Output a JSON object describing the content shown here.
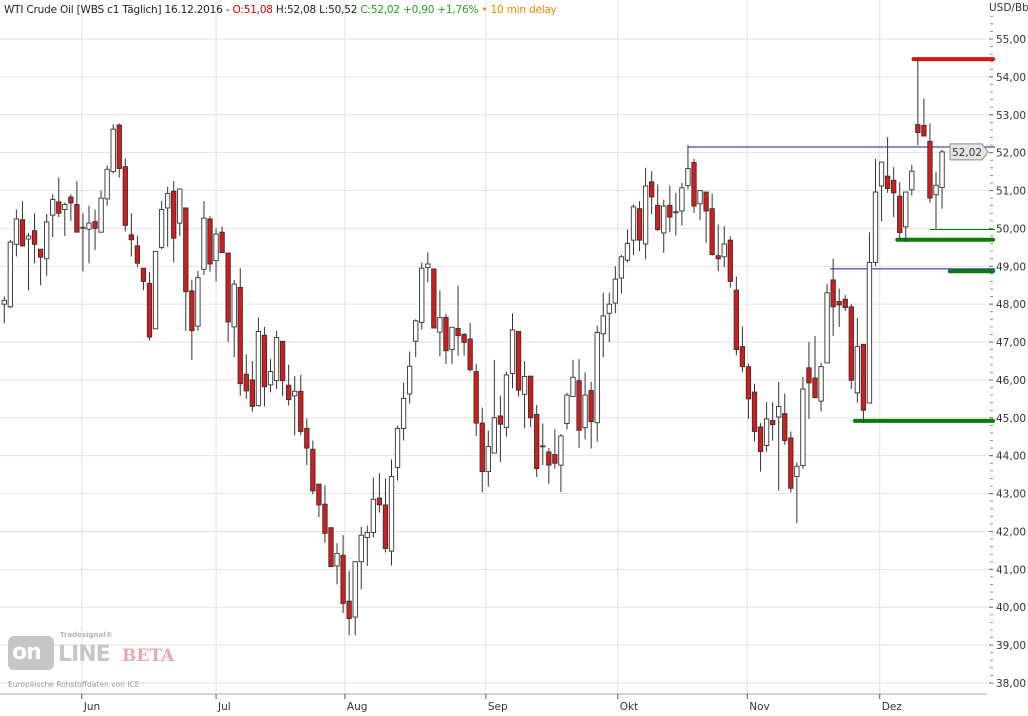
{
  "header": {
    "instrument": "WTI Crude Oil [WBS c1 Täglich] 16.12.2016 - ",
    "open": "O:51,08",
    "high_low": " H:52,08 L:50,52 ",
    "close_change": "C:52,02 +0,90 +1,76%",
    "delay": " • 10 min delay"
  },
  "logo": {
    "brand_small": "Tradesignal®",
    "brand_on": "on",
    "brand_line": "LINE",
    "beta": "BETA"
  },
  "source_note": "Europäische Rohstoffdaten von ICE",
  "colors": {
    "up_fill": "#ffffff",
    "down_fill": "#d41c1c",
    "outline": "#333333",
    "header_red": "#d40000",
    "header_green": "#2a9a2a",
    "header_orange": "#e08a00",
    "grid": "#e2e2e2",
    "blue_line": "#1a1a9a",
    "green_line": "#0a7a0a",
    "red_line": "#e01010"
  },
  "chart_data": {
    "type": "candlestick",
    "title": "WTI Crude Oil [WBS c1 Täglich]",
    "ylabel": "USD/Bbl",
    "ylim": [
      37.6,
      56.0
    ],
    "yticks": [
      "55,00",
      "54,00",
      "53,00",
      "52,00",
      "51,00",
      "50,00",
      "49,00",
      "48,00",
      "47,00",
      "46,00",
      "45,00",
      "44,00",
      "43,00",
      "42,00",
      "41,00",
      "40,00",
      "39,00",
      "38,00"
    ],
    "ytick_values": [
      55,
      54,
      53,
      52,
      51,
      50,
      49,
      48,
      47,
      46,
      45,
      44,
      43,
      42,
      41,
      40,
      39,
      38
    ],
    "grid": true,
    "months": [
      {
        "label": "Jun",
        "index": 12.8
      },
      {
        "label": "Jul",
        "index": 35.0
      },
      {
        "label": "Aug",
        "index": 56.3
      },
      {
        "label": "Sep",
        "index": 79.6
      },
      {
        "label": "Okt",
        "index": 101.4
      },
      {
        "label": "Nov",
        "index": 122.8
      },
      {
        "label": "Dez",
        "index": 144.7
      }
    ],
    "last_price_label": "52,02",
    "last_price": 52.02,
    "levels": [
      {
        "name": "resistance-red",
        "value": 54.47,
        "from_index": 150.3,
        "color": "#e01010",
        "thick": true
      },
      {
        "name": "blue-line-upper",
        "value": 52.15,
        "from_index": 113,
        "color": "#1a1a9a",
        "thick": false
      },
      {
        "name": "green-thin",
        "value": 49.97,
        "from_index": 153,
        "color": "#0a7a0a",
        "thick": false
      },
      {
        "name": "green-thick-upper",
        "value": 49.7,
        "from_index": 147.6,
        "color": "#0a7a0a",
        "thick": true
      },
      {
        "name": "blue-line-lower",
        "value": 48.93,
        "from_index": 136.5,
        "color": "#1a1a9a",
        "thick": false
      },
      {
        "name": "green-thick-middle",
        "value": 48.87,
        "from_index": 156.3,
        "color": "#0a7a0a",
        "thick": true
      },
      {
        "name": "green-thick-lower",
        "value": 44.92,
        "from_index": 140.6,
        "color": "#0a7a0a",
        "thick": true
      }
    ],
    "ohlc": [
      [
        48.0,
        48.2,
        47.5,
        48.1
      ],
      [
        47.93,
        49.7,
        47.9,
        49.64
      ],
      [
        49.58,
        50.5,
        49.26,
        50.25
      ],
      [
        50.23,
        50.72,
        49.52,
        49.54
      ],
      [
        49.72,
        49.88,
        48.37,
        49.8
      ],
      [
        49.94,
        50.4,
        49.08,
        49.58
      ],
      [
        49.45,
        49.45,
        48.5,
        49.24
      ],
      [
        49.2,
        50.38,
        48.75,
        50.17
      ],
      [
        50.35,
        50.9,
        49.77,
        50.76
      ],
      [
        50.7,
        51.34,
        50.3,
        50.4
      ],
      [
        50.5,
        50.68,
        49.8,
        50.63
      ],
      [
        50.83,
        50.9,
        50.2,
        50.67
      ],
      [
        50.63,
        51.25,
        49.9,
        49.9
      ],
      [
        50.03,
        50.4,
        48.86,
        50.03
      ],
      [
        49.98,
        50.6,
        49.08,
        50.14
      ],
      [
        50.18,
        50.5,
        49.43,
        50.0
      ],
      [
        49.9,
        51.0,
        49.9,
        50.8
      ],
      [
        50.78,
        51.66,
        50.6,
        51.56
      ],
      [
        51.5,
        52.75,
        51.45,
        52.62
      ],
      [
        52.73,
        52.77,
        51.34,
        51.58
      ],
      [
        51.63,
        51.84,
        49.92,
        50.08
      ],
      [
        49.83,
        50.4,
        49.26,
        49.7
      ],
      [
        49.54,
        49.8,
        48.97,
        49.08
      ],
      [
        48.95,
        48.95,
        48.37,
        48.6
      ],
      [
        48.55,
        48.84,
        47.04,
        47.13
      ],
      [
        47.35,
        49.39,
        47.35,
        49.39
      ],
      [
        49.5,
        50.72,
        49.45,
        50.5
      ],
      [
        50.54,
        51.1,
        49.52,
        50.92
      ],
      [
        50.98,
        51.25,
        49.1,
        49.74
      ],
      [
        50.14,
        51.04,
        49.8,
        51.04
      ],
      [
        50.54,
        50.54,
        47.3,
        48.33
      ],
      [
        48.35,
        48.65,
        46.53,
        47.3
      ],
      [
        47.42,
        48.88,
        47.3,
        48.7
      ],
      [
        48.92,
        50.72,
        48.77,
        50.27
      ],
      [
        50.25,
        50.32,
        48.86,
        49.06
      ],
      [
        49.15,
        50.0,
        48.6,
        49.85
      ],
      [
        49.9,
        50.05,
        49.36,
        49.36
      ],
      [
        49.35,
        49.35,
        47.0,
        47.53
      ],
      [
        47.4,
        48.64,
        46.6,
        48.53
      ],
      [
        48.44,
        48.95,
        45.58,
        45.9
      ],
      [
        46.15,
        46.68,
        45.5,
        45.71
      ],
      [
        46.0,
        46.5,
        45.16,
        45.3
      ],
      [
        45.32,
        47.65,
        45.3,
        47.28
      ],
      [
        47.18,
        47.4,
        45.3,
        45.82
      ],
      [
        45.87,
        46.55,
        45.67,
        46.22
      ],
      [
        45.98,
        47.3,
        45.76,
        47.12
      ],
      [
        47.02,
        47.02,
        45.58,
        45.98
      ],
      [
        45.86,
        46.4,
        45.32,
        45.48
      ],
      [
        45.58,
        46.1,
        44.54,
        45.7
      ],
      [
        45.7,
        46.13,
        44.54,
        44.64
      ],
      [
        44.72,
        44.98,
        43.75,
        44.2
      ],
      [
        44.17,
        44.4,
        42.98,
        43.07
      ],
      [
        43.25,
        43.25,
        42.38,
        42.7
      ],
      [
        42.72,
        43.22,
        41.7,
        41.95
      ],
      [
        42.1,
        42.1,
        41.07,
        41.07
      ],
      [
        41.09,
        41.69,
        40.6,
        41.42
      ],
      [
        41.37,
        41.9,
        39.85,
        40.1
      ],
      [
        40.16,
        40.96,
        39.26,
        39.7
      ],
      [
        39.74,
        41.2,
        39.26,
        41.2
      ],
      [
        41.2,
        42.12,
        40.47,
        41.9
      ],
      [
        41.84,
        42.15,
        41.09,
        41.97
      ],
      [
        41.97,
        43.42,
        41.84,
        42.85
      ],
      [
        42.88,
        43.54,
        42.5,
        42.7
      ],
      [
        42.7,
        43.4,
        41.44,
        41.55
      ],
      [
        41.48,
        43.9,
        41.1,
        43.45
      ],
      [
        43.69,
        44.79,
        43.34,
        44.72
      ],
      [
        44.72,
        45.93,
        44.4,
        45.51
      ],
      [
        45.63,
        46.75,
        45.38,
        46.36
      ],
      [
        47.02,
        47.6,
        46.6,
        47.56
      ],
      [
        47.52,
        49.1,
        47.33,
        48.95
      ],
      [
        48.97,
        49.37,
        48.58,
        49.06
      ],
      [
        48.93,
        48.93,
        47.37,
        47.37
      ],
      [
        47.26,
        48.36,
        46.62,
        47.65
      ],
      [
        47.65,
        47.74,
        46.42,
        46.77
      ],
      [
        46.8,
        47.39,
        46.42,
        47.39
      ],
      [
        47.36,
        48.49,
        46.64,
        47.17
      ],
      [
        47.2,
        47.24,
        46.64,
        46.99
      ],
      [
        47.08,
        47.5,
        46.22,
        46.27
      ],
      [
        46.22,
        46.42,
        44.52,
        44.86
      ],
      [
        44.86,
        45.27,
        43.03,
        43.58
      ],
      [
        43.58,
        44.66,
        43.18,
        44.24
      ],
      [
        44.07,
        46.53,
        44.06,
        45.0
      ],
      [
        45.05,
        45.58,
        43.83,
        44.83
      ],
      [
        44.74,
        46.22,
        44.5,
        46.13
      ],
      [
        46.17,
        47.76,
        45.78,
        47.32
      ],
      [
        47.28,
        47.28,
        45.56,
        45.73
      ],
      [
        45.62,
        46.5,
        44.72,
        46.09
      ],
      [
        46.1,
        46.1,
        44.76,
        45.0
      ],
      [
        45.09,
        45.34,
        43.44,
        43.66
      ],
      [
        44.26,
        44.85,
        43.75,
        44.26
      ],
      [
        44.1,
        44.2,
        43.26,
        43.75
      ],
      [
        44.03,
        44.7,
        43.66,
        43.8
      ],
      [
        43.75,
        44.57,
        43.04,
        44.52
      ],
      [
        44.85,
        45.66,
        44.69,
        45.6
      ],
      [
        45.56,
        46.53,
        45.56,
        46.07
      ],
      [
        45.98,
        46.55,
        44.21,
        44.67
      ],
      [
        44.74,
        46.2,
        44.43,
        45.6
      ],
      [
        45.72,
        45.95,
        44.19,
        44.9
      ],
      [
        44.87,
        47.43,
        44.37,
        47.25
      ],
      [
        47.22,
        48.3,
        46.6,
        47.69
      ],
      [
        47.76,
        48.3,
        47.0,
        48.0
      ],
      [
        48.03,
        49.0,
        47.76,
        48.66
      ],
      [
        48.69,
        49.3,
        48.28,
        49.25
      ],
      [
        49.16,
        49.97,
        49.1,
        49.6
      ],
      [
        49.69,
        50.63,
        49.3,
        50.57
      ],
      [
        50.52,
        50.72,
        49.4,
        49.69
      ],
      [
        49.59,
        51.6,
        49.18,
        51.12
      ],
      [
        51.23,
        51.51,
        50.37,
        50.83
      ],
      [
        50.61,
        51.16,
        49.93,
        49.97
      ],
      [
        49.88,
        50.76,
        49.35,
        50.59
      ],
      [
        50.61,
        51.13,
        49.9,
        50.3
      ],
      [
        50.44,
        50.94,
        49.81,
        50.44
      ],
      [
        50.46,
        51.2,
        50.08,
        51.07
      ],
      [
        51.13,
        52.2,
        51.03,
        51.58
      ],
      [
        51.74,
        51.84,
        50.41,
        50.59
      ],
      [
        50.65,
        51.0,
        50.22,
        51.0
      ],
      [
        50.96,
        50.96,
        49.62,
        50.46
      ],
      [
        50.52,
        50.92,
        49.28,
        49.31
      ],
      [
        49.28,
        50.1,
        48.87,
        49.2
      ],
      [
        49.25,
        50.06,
        48.98,
        49.59
      ],
      [
        49.69,
        49.79,
        48.44,
        48.6
      ],
      [
        48.37,
        48.73,
        46.65,
        46.8
      ],
      [
        46.88,
        47.4,
        46.2,
        46.35
      ],
      [
        46.35,
        46.43,
        44.97,
        45.5
      ],
      [
        45.68,
        45.9,
        44.38,
        44.64
      ],
      [
        44.76,
        44.86,
        43.58,
        44.11
      ],
      [
        44.27,
        45.41,
        44.11,
        44.97
      ],
      [
        44.93,
        45.41,
        44.4,
        44.82
      ],
      [
        45.02,
        45.95,
        43.08,
        45.3
      ],
      [
        45.11,
        45.64,
        44.29,
        44.4
      ],
      [
        44.47,
        44.64,
        43.03,
        43.14
      ],
      [
        43.45,
        43.82,
        42.22,
        43.72
      ],
      [
        43.74,
        46.08,
        43.65,
        45.76
      ],
      [
        46.32,
        47.0,
        44.97,
        45.92
      ],
      [
        46.05,
        47.16,
        45.53,
        45.53
      ],
      [
        45.44,
        46.45,
        45.17,
        46.35
      ],
      [
        46.45,
        48.53,
        46.45,
        48.3
      ],
      [
        48.64,
        49.2,
        47.16,
        47.93
      ],
      [
        48.07,
        48.41,
        47.4,
        47.98
      ],
      [
        48.13,
        48.24,
        47.82,
        47.91
      ],
      [
        47.93,
        48.0,
        45.76,
        45.99
      ],
      [
        45.66,
        47.64,
        45.4,
        46.88
      ],
      [
        46.94,
        46.94,
        44.86,
        45.2
      ],
      [
        45.39,
        49.9,
        45.39,
        49.1
      ],
      [
        49.1,
        51.84,
        49.0,
        50.96
      ],
      [
        51.12,
        51.75,
        50.19,
        51.75
      ],
      [
        51.38,
        52.41,
        50.94,
        51.05
      ],
      [
        51.27,
        51.62,
        50.3,
        50.94
      ],
      [
        50.85,
        51.22,
        49.71,
        49.89
      ],
      [
        50.04,
        50.96,
        49.64,
        50.96
      ],
      [
        51.02,
        51.68,
        50.87,
        51.51
      ],
      [
        52.74,
        54.47,
        52.19,
        52.53
      ],
      [
        52.72,
        53.43,
        52.44,
        52.44
      ],
      [
        52.3,
        52.77,
        50.68,
        50.8
      ],
      [
        50.89,
        51.5,
        49.99,
        51.14
      ],
      [
        51.08,
        52.08,
        50.52,
        52.02
      ]
    ]
  }
}
